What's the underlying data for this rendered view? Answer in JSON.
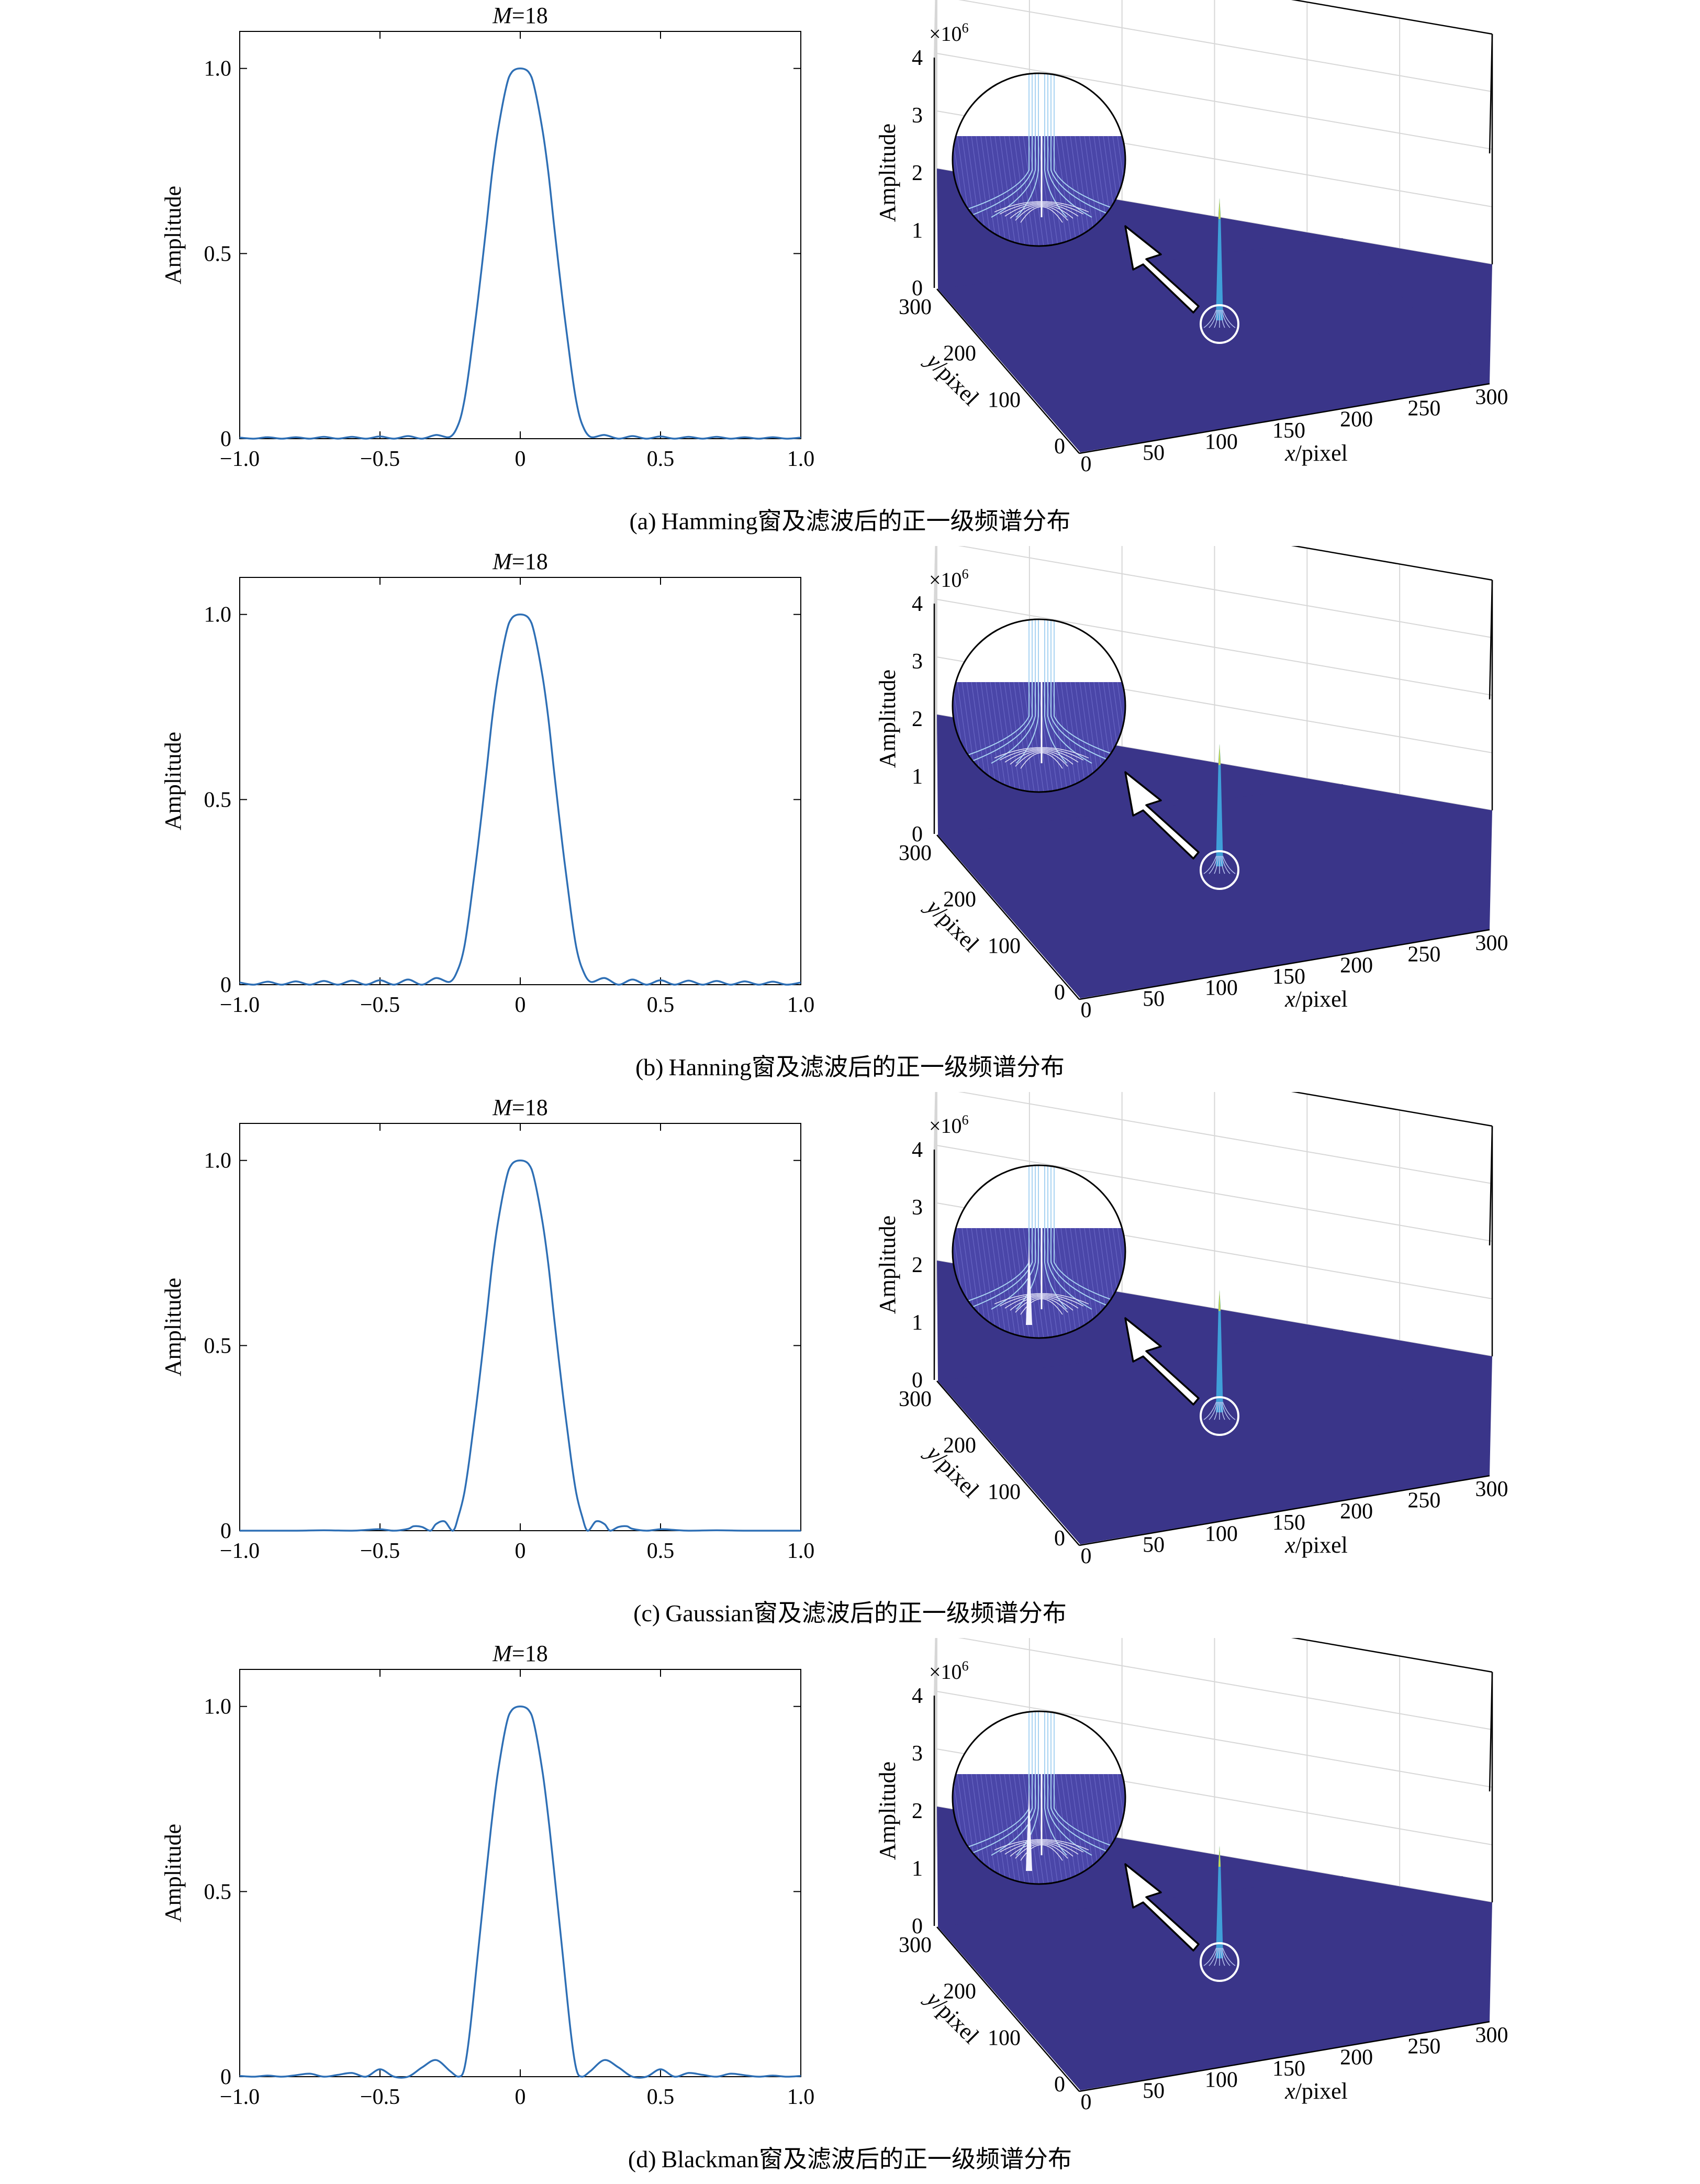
{
  "panels": [
    {
      "id": "a",
      "caption_tag": "(a)",
      "caption_text": "Hamming窗及滤波后的正一级频谱分布",
      "chart_data": [
        {
          "type": "line",
          "title_var": "M",
          "title_val": "=18",
          "xlabel": "",
          "ylabel": "Amplitude",
          "xlim": [
            -1.0,
            1.0
          ],
          "ylim": [
            0,
            1.1
          ],
          "xticks": [
            -1.0,
            -0.5,
            0,
            0.5,
            1.0
          ],
          "xtick_labels": [
            "−1.0",
            "−0.5",
            "0",
            "0.5",
            "1.0"
          ],
          "yticks": [
            0,
            0.5,
            1.0
          ],
          "ytick_labels": [
            "0",
            "0.5",
            "1.0"
          ],
          "series": [
            {
              "color": "#2e6fb5",
              "x": [
                -1.0,
                -0.95,
                -0.9,
                -0.85,
                -0.8,
                -0.75,
                -0.7,
                -0.65,
                -0.6,
                -0.55,
                -0.5,
                -0.45,
                -0.4,
                -0.35,
                -0.3,
                -0.25,
                -0.22,
                -0.2,
                -0.18,
                -0.15,
                -0.12,
                -0.1,
                -0.08,
                -0.05,
                -0.03,
                0,
                0.03,
                0.05,
                0.08,
                0.1,
                0.12,
                0.15,
                0.18,
                0.2,
                0.22,
                0.25,
                0.3,
                0.35,
                0.4,
                0.45,
                0.5,
                0.55,
                0.6,
                0.65,
                0.7,
                0.75,
                0.8,
                0.85,
                0.9,
                0.95,
                1.0
              ],
              "y": [
                0.003,
                0.0,
                0.004,
                0.0,
                0.004,
                0.0,
                0.005,
                0.0,
                0.005,
                0.0,
                0.006,
                0.0,
                0.007,
                0.0,
                0.01,
                0.005,
                0.04,
                0.1,
                0.2,
                0.38,
                0.58,
                0.72,
                0.83,
                0.95,
                0.99,
                1.0,
                0.99,
                0.95,
                0.83,
                0.72,
                0.58,
                0.38,
                0.2,
                0.1,
                0.04,
                0.005,
                0.01,
                0.0,
                0.007,
                0.0,
                0.006,
                0.0,
                0.005,
                0.0,
                0.005,
                0.0,
                0.004,
                0.0,
                0.004,
                0.0,
                0.003
              ]
            }
          ]
        },
        {
          "type": "surface",
          "zlabel": "Amplitude",
          "exponent_base": "×10",
          "exponent_sup": "6",
          "xlabel_var": "x",
          "xlabel_unit": "/pixel",
          "ylabel_var": "y",
          "ylabel_unit": "/pixel",
          "xlim": [
            0,
            300
          ],
          "ylim": [
            0,
            300
          ],
          "zlim": [
            0,
            4
          ],
          "xtick_labels": [
            "0",
            "50",
            "100",
            "150",
            "200",
            "250",
            "300"
          ],
          "ytick_labels": [
            "0",
            "100",
            "200",
            "300"
          ],
          "ztick_labels": [
            "0",
            "1",
            "2",
            "3",
            "4"
          ],
          "peak": {
            "x": 100,
            "y": 0,
            "z": 2.5
          },
          "colors": {
            "surface": "#3a3589",
            "peak": "#3fa0d8",
            "peak_tip": "#c8d84a"
          },
          "inset_secondary_peak": false
        }
      ]
    },
    {
      "id": "b",
      "caption_tag": "(b)",
      "caption_text": "Hanning窗及滤波后的正一级频谱分布",
      "chart_data": [
        {
          "type": "line",
          "title_var": "M",
          "title_val": "=18",
          "xlabel": "",
          "ylabel": "Amplitude",
          "xlim": [
            -1.0,
            1.0
          ],
          "ylim": [
            0,
            1.1
          ],
          "xticks": [
            -1.0,
            -0.5,
            0,
            0.5,
            1.0
          ],
          "xtick_labels": [
            "−1.0",
            "−0.5",
            "0",
            "0.5",
            "1.0"
          ],
          "yticks": [
            0,
            0.5,
            1.0
          ],
          "ytick_labels": [
            "0",
            "0.5",
            "1.0"
          ],
          "series": [
            {
              "color": "#2e6fb5",
              "x": [
                -1.0,
                -0.95,
                -0.9,
                -0.85,
                -0.8,
                -0.75,
                -0.7,
                -0.65,
                -0.6,
                -0.55,
                -0.5,
                -0.45,
                -0.4,
                -0.35,
                -0.3,
                -0.25,
                -0.22,
                -0.2,
                -0.18,
                -0.15,
                -0.12,
                -0.1,
                -0.08,
                -0.05,
                -0.03,
                0,
                0.03,
                0.05,
                0.08,
                0.1,
                0.12,
                0.15,
                0.18,
                0.2,
                0.22,
                0.25,
                0.3,
                0.35,
                0.4,
                0.45,
                0.5,
                0.55,
                0.6,
                0.65,
                0.7,
                0.75,
                0.8,
                0.85,
                0.9,
                0.95,
                1.0
              ],
              "y": [
                0.006,
                0.0,
                0.008,
                0.0,
                0.009,
                0.0,
                0.01,
                0.0,
                0.011,
                0.0,
                0.012,
                0.0,
                0.014,
                0.0,
                0.018,
                0.008,
                0.045,
                0.1,
                0.2,
                0.38,
                0.58,
                0.72,
                0.83,
                0.95,
                0.99,
                1.0,
                0.99,
                0.95,
                0.83,
                0.72,
                0.58,
                0.38,
                0.2,
                0.1,
                0.045,
                0.008,
                0.018,
                0.0,
                0.014,
                0.0,
                0.012,
                0.0,
                0.011,
                0.0,
                0.01,
                0.0,
                0.009,
                0.0,
                0.008,
                0.0,
                0.006
              ]
            }
          ]
        },
        {
          "type": "surface",
          "zlabel": "Amplitude",
          "exponent_base": "×10",
          "exponent_sup": "6",
          "xlabel_var": "x",
          "xlabel_unit": "/pixel",
          "ylabel_var": "y",
          "ylabel_unit": "/pixel",
          "xlim": [
            0,
            300
          ],
          "ylim": [
            0,
            300
          ],
          "zlim": [
            0,
            4
          ],
          "xtick_labels": [
            "0",
            "50",
            "100",
            "150",
            "200",
            "250",
            "300"
          ],
          "ytick_labels": [
            "0",
            "100",
            "200",
            "300"
          ],
          "ztick_labels": [
            "0",
            "1",
            "2",
            "3",
            "4"
          ],
          "peak": {
            "x": 100,
            "y": 0,
            "z": 2.5
          },
          "colors": {
            "surface": "#3a3589",
            "peak": "#3fa0d8",
            "peak_tip": "#c8d84a"
          },
          "inset_secondary_peak": false
        }
      ]
    },
    {
      "id": "c",
      "caption_tag": "(c)",
      "caption_text": "Gaussian窗及滤波后的正一级频谱分布",
      "chart_data": [
        {
          "type": "line",
          "title_var": "M",
          "title_val": "=18",
          "xlabel": "",
          "ylabel": "Amplitude",
          "xlim": [
            -1.0,
            1.0
          ],
          "ylim": [
            0,
            1.1
          ],
          "xticks": [
            -1.0,
            -0.5,
            0,
            0.5,
            1.0
          ],
          "xtick_labels": [
            "−1.0",
            "−0.5",
            "0",
            "0.5",
            "1.0"
          ],
          "yticks": [
            0,
            0.5,
            1.0
          ],
          "ytick_labels": [
            "0",
            "0.5",
            "1.0"
          ],
          "series": [
            {
              "color": "#2e6fb5",
              "x": [
                -1.0,
                -0.9,
                -0.8,
                -0.7,
                -0.6,
                -0.55,
                -0.5,
                -0.45,
                -0.4,
                -0.38,
                -0.35,
                -0.32,
                -0.3,
                -0.27,
                -0.24,
                -0.22,
                -0.2,
                -0.18,
                -0.15,
                -0.12,
                -0.1,
                -0.08,
                -0.05,
                -0.03,
                0,
                0.03,
                0.05,
                0.08,
                0.1,
                0.12,
                0.15,
                0.18,
                0.2,
                0.22,
                0.24,
                0.27,
                0.3,
                0.32,
                0.35,
                0.38,
                0.4,
                0.45,
                0.5,
                0.55,
                0.6,
                0.7,
                0.8,
                0.9,
                1.0
              ],
              "y": [
                0.0,
                0.0,
                0.0,
                0.001,
                0.0,
                0.002,
                0.004,
                0.0,
                0.005,
                0.012,
                0.01,
                0.0,
                0.018,
                0.025,
                0.0,
                0.04,
                0.1,
                0.2,
                0.38,
                0.58,
                0.72,
                0.83,
                0.95,
                0.99,
                1.0,
                0.99,
                0.95,
                0.83,
                0.72,
                0.58,
                0.38,
                0.2,
                0.1,
                0.04,
                0.0,
                0.025,
                0.018,
                0.0,
                0.01,
                0.012,
                0.005,
                0.0,
                0.004,
                0.002,
                0.0,
                0.001,
                0.0,
                0.0,
                0.0
              ]
            }
          ]
        },
        {
          "type": "surface",
          "zlabel": "Amplitude",
          "exponent_base": "×10",
          "exponent_sup": "6",
          "xlabel_var": "x",
          "xlabel_unit": "/pixel",
          "ylabel_var": "y",
          "ylabel_unit": "/pixel",
          "xlim": [
            0,
            300
          ],
          "ylim": [
            0,
            300
          ],
          "zlim": [
            0,
            4
          ],
          "xtick_labels": [
            "0",
            "50",
            "100",
            "150",
            "200",
            "250",
            "300"
          ],
          "ytick_labels": [
            "0",
            "100",
            "200",
            "300"
          ],
          "ztick_labels": [
            "0",
            "1",
            "2",
            "3",
            "4"
          ],
          "peak": {
            "x": 100,
            "y": 0,
            "z": 2.5
          },
          "colors": {
            "surface": "#3a3589",
            "peak": "#3fa0d8",
            "peak_tip": "#c8d84a"
          },
          "inset_secondary_peak": true
        }
      ]
    },
    {
      "id": "d",
      "caption_tag": "(d)",
      "caption_text": "Blackman窗及滤波后的正一级频谱分布",
      "chart_data": [
        {
          "type": "line",
          "title_var": "M",
          "title_val": "=18",
          "xlabel": "",
          "ylabel": "Amplitude",
          "xlim": [
            -1.0,
            1.0
          ],
          "ylim": [
            0,
            1.1
          ],
          "xticks": [
            -1.0,
            -0.5,
            0,
            0.5,
            1.0
          ],
          "xtick_labels": [
            "−1.0",
            "−0.5",
            "0",
            "0.5",
            "1.0"
          ],
          "yticks": [
            0,
            0.5,
            1.0
          ],
          "ytick_labels": [
            "0",
            "0.5",
            "1.0"
          ],
          "series": [
            {
              "color": "#2e6fb5",
              "x": [
                -1.0,
                -0.95,
                -0.9,
                -0.85,
                -0.8,
                -0.75,
                -0.7,
                -0.65,
                -0.6,
                -0.55,
                -0.5,
                -0.45,
                -0.4,
                -0.35,
                -0.3,
                -0.25,
                -0.22,
                -0.2,
                -0.18,
                -0.15,
                -0.12,
                -0.1,
                -0.08,
                -0.05,
                -0.03,
                0,
                0.03,
                0.05,
                0.08,
                0.1,
                0.12,
                0.15,
                0.18,
                0.2,
                0.22,
                0.25,
                0.3,
                0.35,
                0.4,
                0.45,
                0.5,
                0.55,
                0.6,
                0.65,
                0.7,
                0.75,
                0.8,
                0.85,
                0.9,
                0.95,
                1.0
              ],
              "y": [
                0.002,
                0.0,
                0.003,
                0.0,
                0.004,
                0.008,
                0.0,
                0.005,
                0.01,
                0.0,
                0.02,
                0.0,
                0.0,
                0.025,
                0.045,
                0.015,
                0.0,
                0.02,
                0.12,
                0.34,
                0.56,
                0.7,
                0.82,
                0.95,
                0.99,
                1.0,
                0.99,
                0.95,
                0.82,
                0.7,
                0.56,
                0.34,
                0.12,
                0.02,
                0.0,
                0.015,
                0.045,
                0.025,
                0.0,
                0.0,
                0.02,
                0.0,
                0.01,
                0.005,
                0.0,
                0.008,
                0.004,
                0.0,
                0.003,
                0.0,
                0.002
              ]
            }
          ]
        },
        {
          "type": "surface",
          "zlabel": "Amplitude",
          "exponent_base": "×10",
          "exponent_sup": "6",
          "xlabel_var": "x",
          "xlabel_unit": "/pixel",
          "ylabel_var": "y",
          "ylabel_unit": "/pixel",
          "xlim": [
            0,
            300
          ],
          "ylim": [
            0,
            300
          ],
          "zlim": [
            0,
            4
          ],
          "xtick_labels": [
            "0",
            "50",
            "100",
            "150",
            "200",
            "250",
            "300"
          ],
          "ytick_labels": [
            "0",
            "100",
            "200",
            "300"
          ],
          "ztick_labels": [
            "0",
            "1",
            "2",
            "3",
            "4"
          ],
          "peak": {
            "x": 100,
            "y": 0,
            "z": 2.3
          },
          "colors": {
            "surface": "#3a3589",
            "peak": "#3fa0d8",
            "peak_tip": "#c8d84a"
          },
          "inset_secondary_peak": true
        }
      ]
    }
  ]
}
